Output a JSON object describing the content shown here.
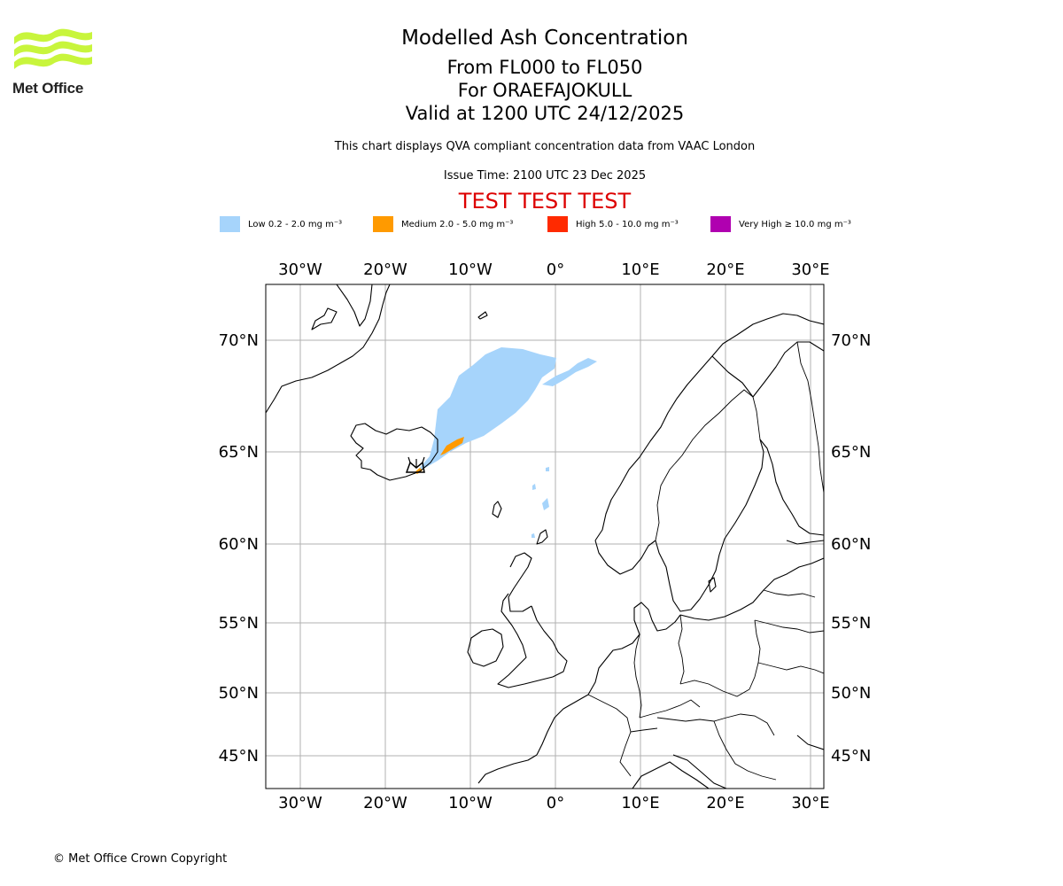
{
  "brand": {
    "name": "Met Office",
    "logo_color": "#c8f53c"
  },
  "header": {
    "title": "Modelled Ash Concentration",
    "levels": "From FL000 to FL050",
    "volcano": "For ORAEFAJOKULL",
    "valid": "Valid at 1200 UTC 24/12/2025",
    "description": "This chart displays QVA compliant concentration data from VAAC London",
    "issue_time": "Issue Time: 2100 UTC 23 Dec 2025",
    "test_banner": "TEST TEST TEST"
  },
  "legend": [
    {
      "label": "Low 0.2 - 2.0 mg m⁻³",
      "color": "#a6d4fb"
    },
    {
      "label": "Medium 2.0 - 5.0 mg m⁻³",
      "color": "#ff9a00"
    },
    {
      "label": "High 5.0 - 10.0 mg m⁻³",
      "color": "#ff2a00"
    },
    {
      "label": "Very High  ≥  10.0 mg m⁻³",
      "color": "#b000b0"
    }
  ],
  "map": {
    "lon_ticks": [
      "30°W",
      "20°W",
      "10°W",
      "0°",
      "10°E",
      "20°E",
      "30°E"
    ],
    "lat_ticks": [
      "70°N",
      "65°N",
      "60°N",
      "55°N",
      "50°N",
      "45°N"
    ],
    "coastline_color": "#000000",
    "grid_color": "#b0b0b0"
  },
  "footer": {
    "copyright": "© Met Office Crown Copyright"
  }
}
